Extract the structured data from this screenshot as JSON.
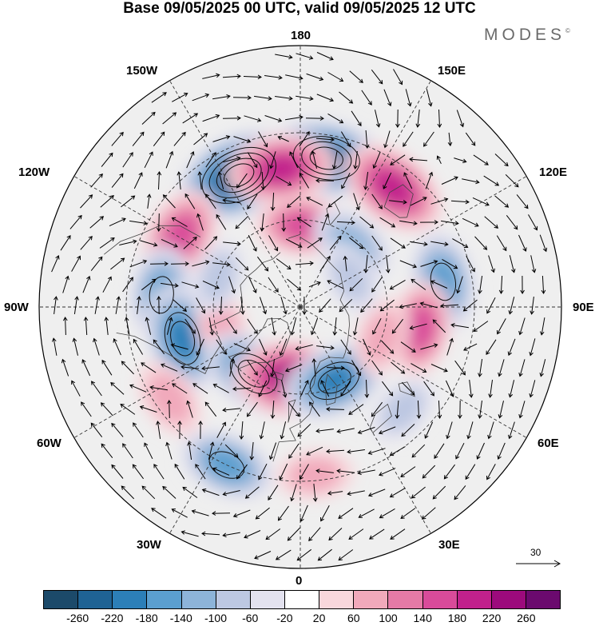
{
  "title": "Base 09/05/2025 00 UTC, valid 09/05/2025 12 UTC",
  "brand": "MODES",
  "brand_mark": "©",
  "meridian_labels": {
    "top": "180",
    "bottom": "0",
    "left": "90W",
    "right": "90E",
    "upper_left_1": "150W",
    "upper_left_2": "120W",
    "upper_right_1": "150E",
    "upper_right_2": "120E",
    "lower_left_1": "60W",
    "lower_left_2": "30W",
    "lower_right_1": "60E",
    "lower_right_2": "30E"
  },
  "reference_vector": {
    "label": "30"
  },
  "colorbar": {
    "colors": [
      "#1c4a6a",
      "#1f6394",
      "#2c7fb8",
      "#5b9fcf",
      "#8db4d9",
      "#bdc8e2",
      "#e3e2ef",
      "#ffffff",
      "#f8d7dc",
      "#f1a9bb",
      "#e57aa6",
      "#d94b9a",
      "#c1218c",
      "#9c0a7c",
      "#6b0a6e"
    ],
    "tick_labels": [
      "-260",
      "-220",
      "-180",
      "-140",
      "-100",
      "-60",
      "-20",
      "20",
      "60",
      "100",
      "140",
      "180",
      "220",
      "260"
    ]
  },
  "anomaly_centres": [
    {
      "lon": -155,
      "lat": 40,
      "value": -270
    },
    {
      "lon": 170,
      "lat": 38,
      "value": -240
    },
    {
      "lon": -172,
      "lat": 42,
      "value": 190
    },
    {
      "lon": 142,
      "lat": 38,
      "value": 200
    },
    {
      "lon": 178,
      "lat": 62,
      "value": 140
    },
    {
      "lon": -120,
      "lat": 42,
      "value": 170
    },
    {
      "lon": 100,
      "lat": 40,
      "value": -160
    },
    {
      "lon": 140,
      "lat": 62,
      "value": -120
    },
    {
      "lon": -95,
      "lat": 42,
      "value": -150
    },
    {
      "lon": -75,
      "lat": 48,
      "value": -200
    },
    {
      "lon": -75,
      "lat": 62,
      "value": 80
    },
    {
      "lon": -35,
      "lat": 62,
      "value": -190
    },
    {
      "lon": -5,
      "lat": 65,
      "value": 240
    },
    {
      "lon": 25,
      "lat": 62,
      "value": -190
    },
    {
      "lon": 80,
      "lat": 48,
      "value": 140
    },
    {
      "lon": 70,
      "lat": 60,
      "value": 80
    },
    {
      "lon": -55,
      "lat": 35,
      "value": 90
    },
    {
      "lon": -25,
      "lat": 30,
      "value": -150
    },
    {
      "lon": 5,
      "lat": 32,
      "value": 70
    },
    {
      "lon": 45,
      "lat": 40,
      "value": -60
    },
    {
      "lon": -110,
      "lat": 60,
      "value": -60
    },
    {
      "lon": 120,
      "lat": 70,
      "value": -60
    }
  ]
}
